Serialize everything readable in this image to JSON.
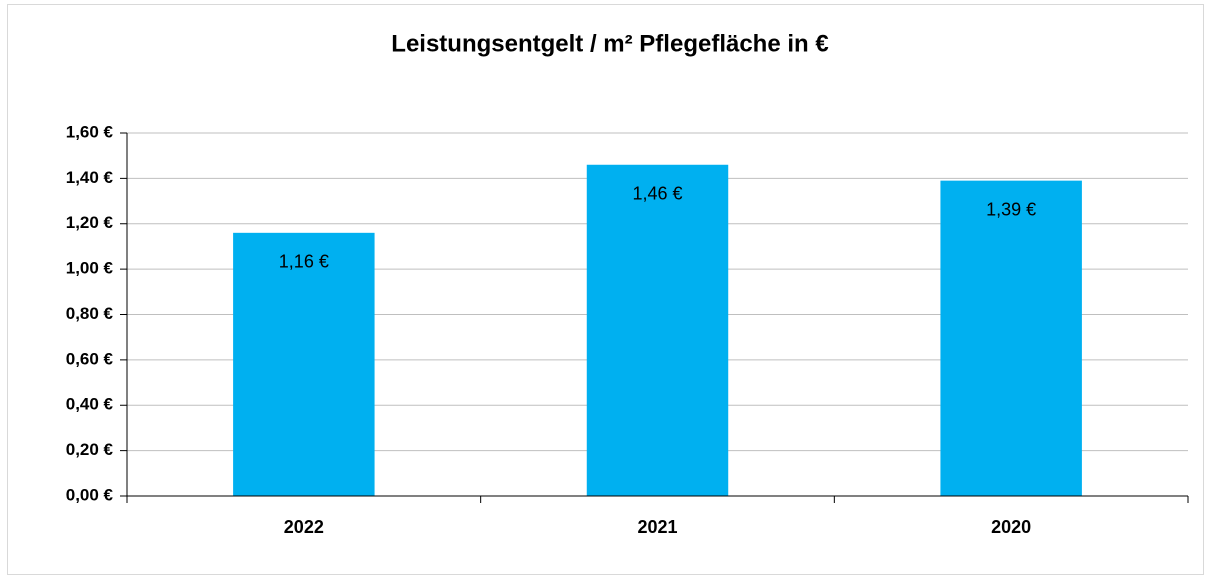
{
  "chart_data": {
    "type": "bar",
    "title": "Leistungsentgelt / m² Pflegefläche in €",
    "categories": [
      "2022",
      "2021",
      "2020"
    ],
    "values": [
      1.16,
      1.46,
      1.39
    ],
    "value_labels": [
      "1,16 €",
      "1,46 €",
      "1,39 €"
    ],
    "color": "#00b0f0",
    "ylim": [
      0,
      1.6
    ],
    "yticks": [
      {
        "value": 0,
        "label": "0,00 €"
      },
      {
        "value": 0.2,
        "label": "0,20 €"
      },
      {
        "value": 0.4,
        "label": "0,40 €"
      },
      {
        "value": 0.6,
        "label": "0,60 €"
      },
      {
        "value": 0.8,
        "label": "0,80 €"
      },
      {
        "value": 1.0,
        "label": "1,00 €"
      },
      {
        "value": 1.2,
        "label": "1,20 €"
      },
      {
        "value": 1.4,
        "label": "1,40 €"
      },
      {
        "value": 1.6,
        "label": "1,60 €"
      }
    ],
    "grid": true
  }
}
